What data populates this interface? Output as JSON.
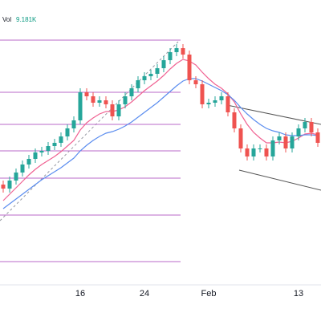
{
  "chart_data": {
    "type": "candlestick",
    "volume_label": "Vol",
    "volume_value": "9.181K",
    "categories": [
      null,
      null,
      null,
      null,
      null,
      null,
      null,
      null,
      null,
      null,
      null,
      null,
      "16",
      null,
      null,
      null,
      null,
      null,
      null,
      null,
      null,
      null,
      "24",
      null,
      null,
      null,
      null,
      null,
      null,
      null,
      null,
      null,
      "Feb",
      null,
      null,
      null,
      null,
      null,
      null,
      null,
      null,
      null,
      null,
      null,
      null,
      null,
      "13",
      null,
      null,
      null
    ],
    "open": [
      170,
      165,
      175,
      185,
      195,
      202,
      210,
      212,
      218,
      222,
      230,
      240,
      250,
      285,
      280,
      272,
      275,
      270,
      255,
      270,
      280,
      290,
      300,
      305,
      308,
      315,
      325,
      335,
      340,
      332,
      300,
      295,
      270,
      272,
      275,
      280,
      260,
      240,
      215,
      205,
      215,
      215,
      205,
      225,
      230,
      215,
      230,
      240,
      248,
      235
    ],
    "high": [
      175,
      180,
      190,
      200,
      207,
      215,
      217,
      223,
      227,
      235,
      245,
      255,
      290,
      290,
      285,
      280,
      280,
      275,
      275,
      285,
      295,
      305,
      310,
      313,
      320,
      330,
      340,
      345,
      345,
      337,
      305,
      300,
      277,
      280,
      285,
      285,
      265,
      245,
      220,
      220,
      220,
      220,
      230,
      235,
      235,
      235,
      245,
      253,
      253,
      240
    ],
    "low": [
      160,
      160,
      170,
      180,
      190,
      197,
      205,
      207,
      213,
      217,
      225,
      235,
      245,
      275,
      267,
      267,
      265,
      250,
      250,
      265,
      275,
      285,
      295,
      300,
      303,
      310,
      320,
      330,
      327,
      295,
      290,
      265,
      265,
      267,
      270,
      255,
      235,
      210,
      200,
      200,
      210,
      200,
      200,
      220,
      210,
      210,
      225,
      235,
      230,
      217
    ],
    "close": [
      165,
      175,
      185,
      195,
      202,
      210,
      212,
      218,
      222,
      230,
      240,
      250,
      285,
      280,
      272,
      275,
      270,
      255,
      270,
      280,
      290,
      300,
      305,
      308,
      315,
      325,
      335,
      340,
      332,
      300,
      295,
      270,
      272,
      275,
      280,
      260,
      240,
      215,
      205,
      215,
      215,
      205,
      225,
      230,
      215,
      230,
      240,
      248,
      235,
      222
    ],
    "up_color": "#26a69a",
    "down_color": "#ef5350",
    "series": [
      {
        "color": "#f06292",
        "values": [
          150,
          158,
          166,
          174,
          182,
          189,
          195,
          200,
          205,
          211,
          218,
          225,
          238,
          247,
          253,
          258,
          261,
          261,
          263,
          267,
          273,
          280,
          287,
          293,
          299,
          306,
          314,
          321,
          326,
          324,
          319,
          310,
          302,
          295,
          290,
          283,
          273,
          258,
          245,
          235,
          228,
          222,
          222,
          223,
          222,
          224,
          228,
          233,
          234,
          232
        ]
      },
      {
        "color": "#5b8def",
        "values": [
          140,
          146,
          152,
          158,
          164,
          170,
          176,
          181,
          186,
          191,
          197,
          203,
          212,
          219,
          225,
          230,
          234,
          236,
          239,
          243,
          248,
          254,
          260,
          266,
          272,
          279,
          286,
          293,
          299,
          302,
          302,
          299,
          295,
          291,
          287,
          282,
          275,
          266,
          258,
          251,
          245,
          240,
          237,
          235,
          232,
          231,
          231,
          232,
          232,
          231
        ]
      }
    ],
    "levels": [
      350,
      285,
      245,
      212,
      178,
      132,
      74
    ],
    "level_color": "#ba68c8",
    "ylim": [
      0,
      400
    ]
  }
}
